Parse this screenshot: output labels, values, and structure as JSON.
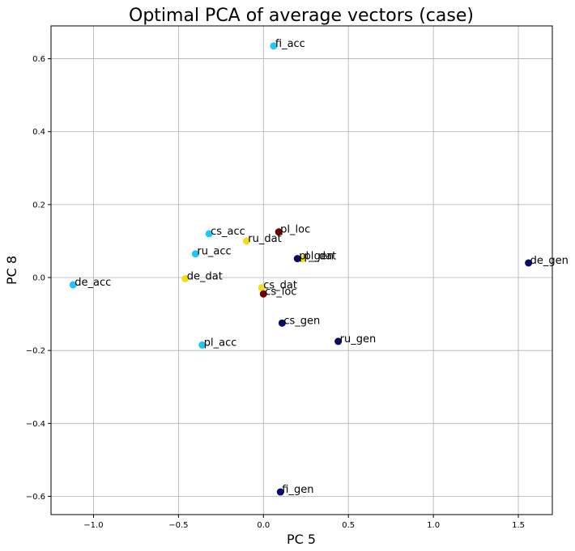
{
  "chart_data": {
    "type": "scatter",
    "title": "Optimal PCA of average vectors (case)",
    "xlabel": "PC 5",
    "ylabel": "PC 8",
    "xlim": [
      -1.25,
      1.7
    ],
    "ylim": [
      -0.65,
      0.69
    ],
    "xticks": [
      -1.0,
      -0.5,
      0.0,
      0.5,
      1.0,
      1.5
    ],
    "xtick_labels": [
      "−1.0",
      "−0.5",
      "0.0",
      "0.5",
      "1.0",
      "1.5"
    ],
    "yticks": [
      -0.6,
      -0.4,
      -0.2,
      0.0,
      0.2,
      0.4,
      0.6
    ],
    "ytick_labels": [
      "−0.6",
      "−0.4",
      "−0.2",
      "0.0",
      "0.2",
      "0.4",
      "0.6"
    ],
    "grid": true,
    "colors": {
      "accusative": "#1ec8f0",
      "dative": "#f5dc14",
      "genitive": "#0a0a64",
      "locative": "#6e0000"
    },
    "points": [
      {
        "label": "fi_acc",
        "x": 0.06,
        "y": 0.635,
        "group": "accusative"
      },
      {
        "label": "cs_acc",
        "x": -0.32,
        "y": 0.12,
        "group": "accusative"
      },
      {
        "label": "ru_acc",
        "x": -0.4,
        "y": 0.065,
        "group": "accusative"
      },
      {
        "label": "de_acc",
        "x": -1.12,
        "y": -0.02,
        "group": "accusative"
      },
      {
        "label": "pl_acc",
        "x": -0.36,
        "y": -0.185,
        "group": "accusative"
      },
      {
        "label": "ru_dat",
        "x": -0.1,
        "y": 0.1,
        "group": "dative"
      },
      {
        "label": "de_dat",
        "x": -0.46,
        "y": -0.003,
        "group": "dative"
      },
      {
        "label": "cs_dat",
        "x": -0.01,
        "y": -0.028,
        "group": "dative"
      },
      {
        "label": "pl_dat",
        "x": 0.23,
        "y": 0.052,
        "group": "dative"
      },
      {
        "label": "pl_gen",
        "x": 0.2,
        "y": 0.052,
        "group": "genitive"
      },
      {
        "label": "de_gen",
        "x": 1.56,
        "y": 0.04,
        "group": "genitive"
      },
      {
        "label": "cs_gen",
        "x": 0.11,
        "y": -0.125,
        "group": "genitive"
      },
      {
        "label": "ru_gen",
        "x": 0.44,
        "y": -0.175,
        "group": "genitive"
      },
      {
        "label": "fi_gen",
        "x": 0.1,
        "y": -0.588,
        "group": "genitive"
      },
      {
        "label": "pl_loc",
        "x": 0.09,
        "y": 0.125,
        "group": "locative"
      },
      {
        "label": "cs_loc",
        "x": 0.0,
        "y": -0.045,
        "group": "locative"
      }
    ]
  }
}
